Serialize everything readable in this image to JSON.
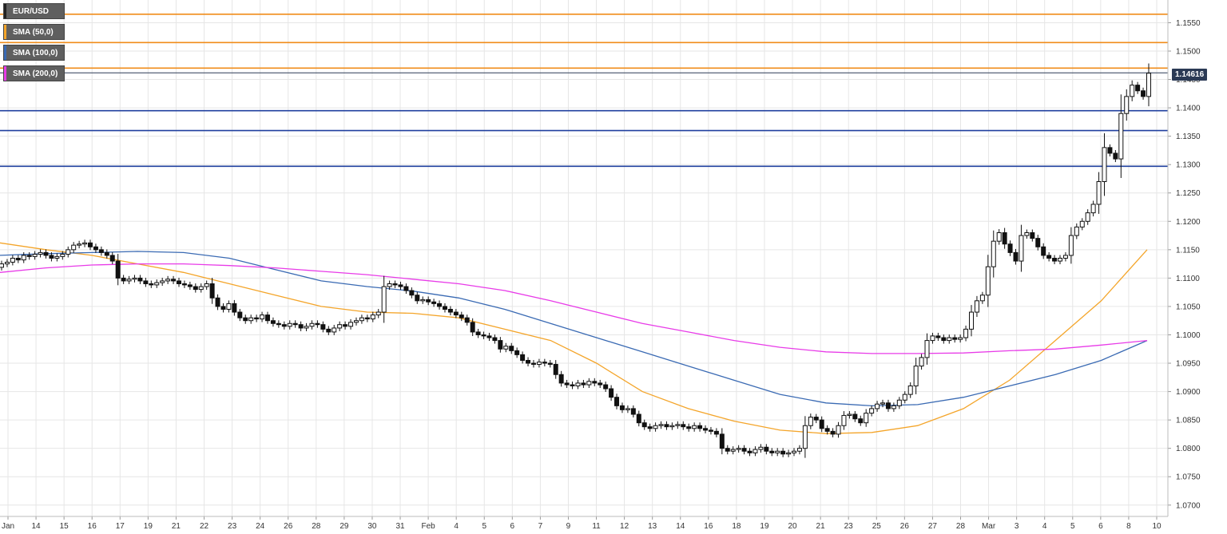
{
  "legend": {
    "symbol": "EUR/USD",
    "sma50": "SMA (50,0)",
    "sma100": "SMA (100,0)",
    "sma200": "SMA (200,0)"
  },
  "colors": {
    "sma50": "#f4a52a",
    "sma100": "#3a6ab3",
    "sma200": "#e83be8",
    "resistance": "#f08c1a",
    "support": "#1f3f9e",
    "price_tag": "#2b3a55",
    "candle": "#111111",
    "grid": "#e6e6e6"
  },
  "price_tag": "1.14616",
  "chart_data": {
    "type": "candlestick",
    "symbol": "EUR/USD",
    "ylim": [
      1.068,
      1.159
    ],
    "y_ticks": [
      "1.1550",
      "1.1500",
      "1.1450",
      "1.1400",
      "1.1350",
      "1.1300",
      "1.1250",
      "1.1200",
      "1.1150",
      "1.1100",
      "1.1050",
      "1.1000",
      "1.0950",
      "1.0900",
      "1.0850",
      "1.0800",
      "1.0750",
      "1.0700"
    ],
    "x_ticks": [
      "Jan",
      "14",
      "15",
      "16",
      "17",
      "19",
      "21",
      "22",
      "23",
      "24",
      "26",
      "28",
      "29",
      "30",
      "31",
      "Feb",
      "4",
      "5",
      "6",
      "7",
      "9",
      "11",
      "12",
      "13",
      "14",
      "16",
      "18",
      "19",
      "20",
      "21",
      "23",
      "25",
      "26",
      "27",
      "28",
      "Mar",
      "3",
      "4",
      "5",
      "6",
      "8",
      "10"
    ],
    "horizontal_levels": {
      "resistance": [
        1.1565,
        1.1515,
        1.147
      ],
      "support": [
        1.1395,
        1.136,
        1.1297
      ],
      "last_price": 1.14616
    },
    "close": [
      1.1125,
      1.1128,
      1.1135,
      1.1132,
      1.114,
      1.1138,
      1.1142,
      1.1145,
      1.114,
      1.1135,
      1.1138,
      1.1142,
      1.115,
      1.1158,
      1.116,
      1.1162,
      1.1155,
      1.115,
      1.1145,
      1.114,
      1.113,
      1.11,
      1.1095,
      1.1098,
      1.11,
      1.1095,
      1.109,
      1.1088,
      1.1092,
      1.1095,
      1.1098,
      1.1095,
      1.109,
      1.1088,
      1.1085,
      1.108,
      1.1085,
      1.109,
      1.1065,
      1.105,
      1.1045,
      1.1055,
      1.104,
      1.103,
      1.1025,
      1.103,
      1.1028,
      1.1035,
      1.1025,
      1.102,
      1.1018,
      1.1015,
      1.102,
      1.1018,
      1.1012,
      1.1015,
      1.102,
      1.1018,
      1.101,
      1.1005,
      1.1012,
      1.1018,
      1.1015,
      1.1022,
      1.1025,
      1.103,
      1.1028,
      1.1035,
      1.104,
      1.1085,
      1.109,
      1.1088,
      1.1085,
      1.1078,
      1.107,
      1.106,
      1.1062,
      1.1058,
      1.1055,
      1.105,
      1.1045,
      1.104,
      1.1035,
      1.103,
      1.1022,
      1.1005,
      1.1,
      1.0998,
      1.0995,
      1.099,
      1.0975,
      1.098,
      1.0972,
      1.0965,
      1.0955,
      1.095,
      1.0948,
      1.0952,
      1.095,
      1.0948,
      1.093,
      1.0915,
      1.0912,
      1.091,
      1.0915,
      1.0912,
      1.0918,
      1.0915,
      1.0912,
      1.0905,
      1.089,
      1.0875,
      1.0868,
      1.087,
      1.086,
      1.0845,
      1.0838,
      1.0835,
      1.084,
      1.0842,
      1.0838,
      1.084,
      1.0842,
      1.0838,
      1.0835,
      1.084,
      1.0835,
      1.0832,
      1.083,
      1.0825,
      1.08,
      1.0795,
      1.0798,
      1.08,
      1.0795,
      1.0792,
      1.0798,
      1.0802,
      1.0795,
      1.0792,
      1.0795,
      1.079,
      1.0792,
      1.0795,
      1.08,
      1.084,
      1.0855,
      1.085,
      1.0835,
      1.083,
      1.0825,
      1.084,
      1.0858,
      1.086,
      1.0852,
      1.0845,
      1.0862,
      1.087,
      1.0878,
      1.088,
      1.087,
      1.0875,
      1.0885,
      1.0895,
      1.091,
      1.0945,
      1.096,
      1.099,
      1.0998,
      1.0995,
      1.099,
      1.0995,
      1.0992,
      1.0995,
      1.101,
      1.104,
      1.106,
      1.107,
      1.112,
      1.1165,
      1.118,
      1.116,
      1.1145,
      1.113,
      1.1175,
      1.118,
      1.117,
      1.1155,
      1.114,
      1.1135,
      1.113,
      1.1135,
      1.114,
      1.1175,
      1.119,
      1.12,
      1.1215,
      1.123,
      1.127,
      1.133,
      1.132,
      1.131,
      1.139,
      1.142,
      1.144,
      1.143,
      1.142,
      1.1461
    ],
    "series": [
      {
        "name": "SMA (50,0)",
        "values": [
          1.1162,
          1.115,
          1.114,
          1.1125,
          1.111,
          1.109,
          1.107,
          1.105,
          1.104,
          1.1038,
          1.103,
          1.101,
          1.099,
          1.095,
          1.09,
          1.087,
          1.0848,
          1.0832,
          1.0826,
          1.0828,
          1.084,
          1.087,
          1.092,
          1.099,
          1.106,
          1.115
        ]
      },
      {
        "name": "SMA (100,0)",
        "values": [
          1.114,
          1.1143,
          1.1145,
          1.1147,
          1.1145,
          1.1135,
          1.1115,
          1.1095,
          1.1085,
          1.1077,
          1.1065,
          1.1045,
          1.102,
          1.0995,
          1.097,
          1.0945,
          1.092,
          1.0895,
          1.088,
          1.0875,
          1.0877,
          1.089,
          1.091,
          1.093,
          1.0955,
          1.099
        ]
      },
      {
        "name": "SMA (200,0)",
        "values": [
          1.111,
          1.1118,
          1.1123,
          1.1125,
          1.1125,
          1.1122,
          1.1118,
          1.1112,
          1.1106,
          1.1098,
          1.109,
          1.1078,
          1.106,
          1.104,
          1.102,
          1.1005,
          1.099,
          1.0978,
          1.097,
          1.0967,
          1.0967,
          1.0968,
          1.0972,
          1.0975,
          1.0982,
          1.099
        ]
      }
    ]
  }
}
